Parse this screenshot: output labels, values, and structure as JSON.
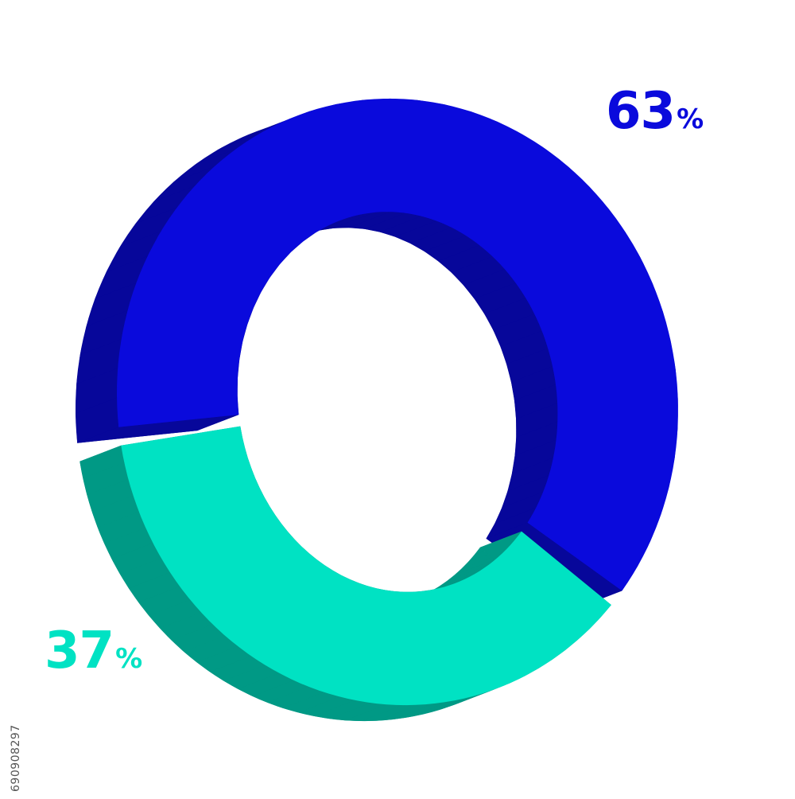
{
  "chart_data": {
    "type": "pie",
    "style": "3d-donut",
    "slices": [
      {
        "label": "63%",
        "number": "63",
        "symbol": "%",
        "value": 63,
        "color": "#0a0adc",
        "side_color": "#07079a"
      },
      {
        "label": "37%",
        "number": "37",
        "symbol": "%",
        "value": 37,
        "color": "#00e2c3",
        "side_color": "#009985"
      }
    ]
  },
  "watermark": {
    "stock_id": "690908297"
  }
}
